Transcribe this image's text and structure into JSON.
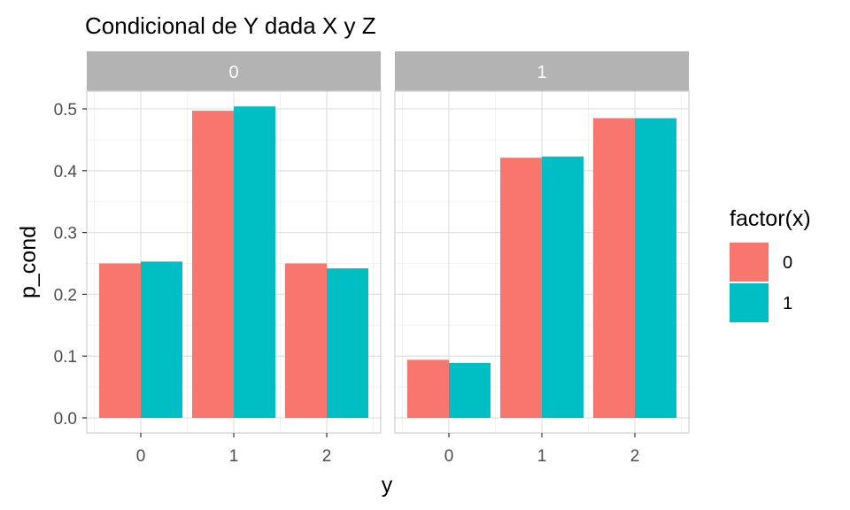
{
  "chart_data": {
    "type": "bar",
    "title": "Condicional de Y dada X y Z",
    "xlabel": "y",
    "ylabel": "p_cond",
    "ylim": [
      0,
      0.5
    ],
    "yticks": [
      "0.0",
      "0.1",
      "0.2",
      "0.3",
      "0.4",
      "0.5"
    ],
    "categories": [
      "0",
      "1",
      "2"
    ],
    "facets": [
      {
        "label": "0",
        "series": [
          {
            "name": "0",
            "values": [
              0.25,
              0.497,
              0.25
            ]
          },
          {
            "name": "1",
            "values": [
              0.253,
              0.504,
              0.242
            ]
          }
        ]
      },
      {
        "label": "1",
        "series": [
          {
            "name": "0",
            "values": [
              0.094,
              0.421,
              0.485
            ]
          },
          {
            "name": "1",
            "values": [
              0.089,
              0.423,
              0.485
            ]
          }
        ]
      }
    ],
    "legend": {
      "title": "factor(x)",
      "placement": "right",
      "entries": [
        {
          "label": "0",
          "color": "#F8766D"
        },
        {
          "label": "1",
          "color": "#00BFC4"
        }
      ]
    },
    "grid": true,
    "strip_color": "#B3B3B3",
    "series_colors": [
      "#F8766D",
      "#00BFC4"
    ]
  }
}
